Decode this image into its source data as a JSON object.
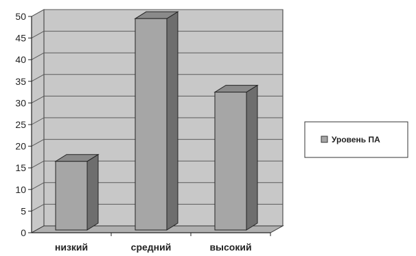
{
  "chart_data": {
    "type": "bar",
    "categories": [
      "низкий",
      "средний",
      "высокий"
    ],
    "series": [
      {
        "name": "Уровень ПА",
        "values": [
          16.5,
          49.5,
          32.5
        ]
      }
    ],
    "ylim": [
      0,
      50
    ],
    "yticks": [
      "0",
      "5",
      "10",
      "15",
      "20",
      "25",
      "30",
      "35",
      "40",
      "45",
      "50"
    ],
    "grid": true,
    "legend_position": "right",
    "style": "3d-column"
  },
  "colors": {
    "wall": "#c8c8c8",
    "floor": "#b0b0b0",
    "bar_front": "#a6a6a6",
    "bar_side": "#6e6e6e",
    "bar_top": "#8a8a8a",
    "grid": "#5a5a5a"
  }
}
